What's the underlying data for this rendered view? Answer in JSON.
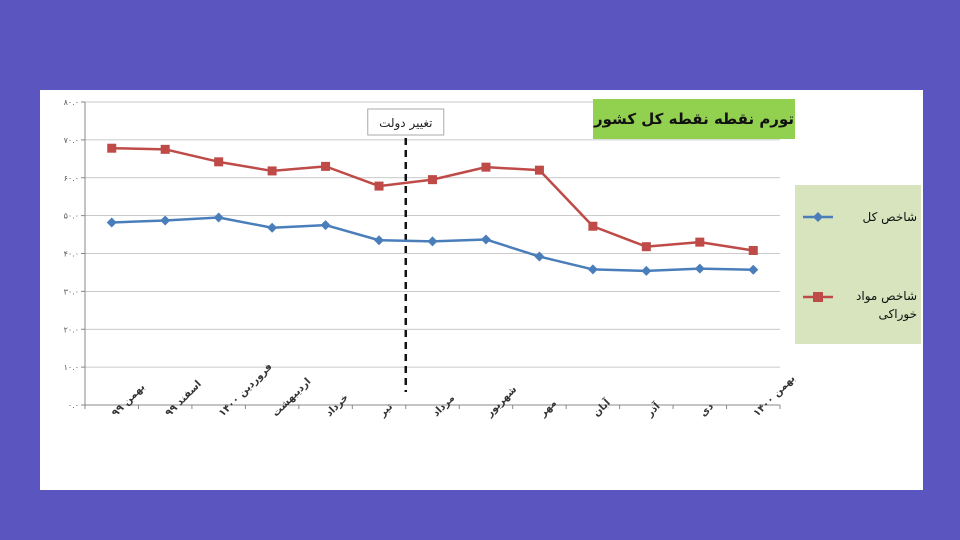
{
  "chart_data": {
    "type": "line",
    "title": "تورم نقطه نقطه کل کشور",
    "categories": [
      "بهمن ۹۹",
      "اسفند ۹۹",
      "فروردین ۱۴۰۰",
      "اردیبهشت",
      "خرداد",
      "تیر",
      "مرداد",
      "شهریور",
      "مهر",
      "آبان",
      "آذر",
      "دی",
      "بهمن ۱۴۰۰"
    ],
    "series": [
      {
        "name": "شاخص کل",
        "color": "#4a7ebb",
        "marker": "diamond",
        "values": [
          48.2,
          48.7,
          49.5,
          46.8,
          47.5,
          43.5,
          43.2,
          43.7,
          39.2,
          35.8,
          35.4,
          36.0,
          35.7
        ]
      },
      {
        "name": "شاخص مواد خوراکی",
        "color": "#be4b48",
        "marker": "square",
        "values": [
          67.8,
          67.5,
          64.2,
          61.8,
          63.0,
          57.8,
          59.5,
          62.8,
          62.0,
          47.2,
          41.8,
          43.0,
          40.8
        ]
      }
    ],
    "yticks": [
      "۰.۰",
      "۱۰.۰",
      "۲۰.۰",
      "۳۰.۰",
      "۴۰.۰",
      "۵۰.۰",
      "۶۰.۰",
      "۷۰.۰",
      "۸۰.۰"
    ],
    "ylim": [
      0,
      80
    ],
    "annotation": {
      "label": "تغییر دولت",
      "category_index": 6
    },
    "legend_position": "right",
    "grid": true
  }
}
